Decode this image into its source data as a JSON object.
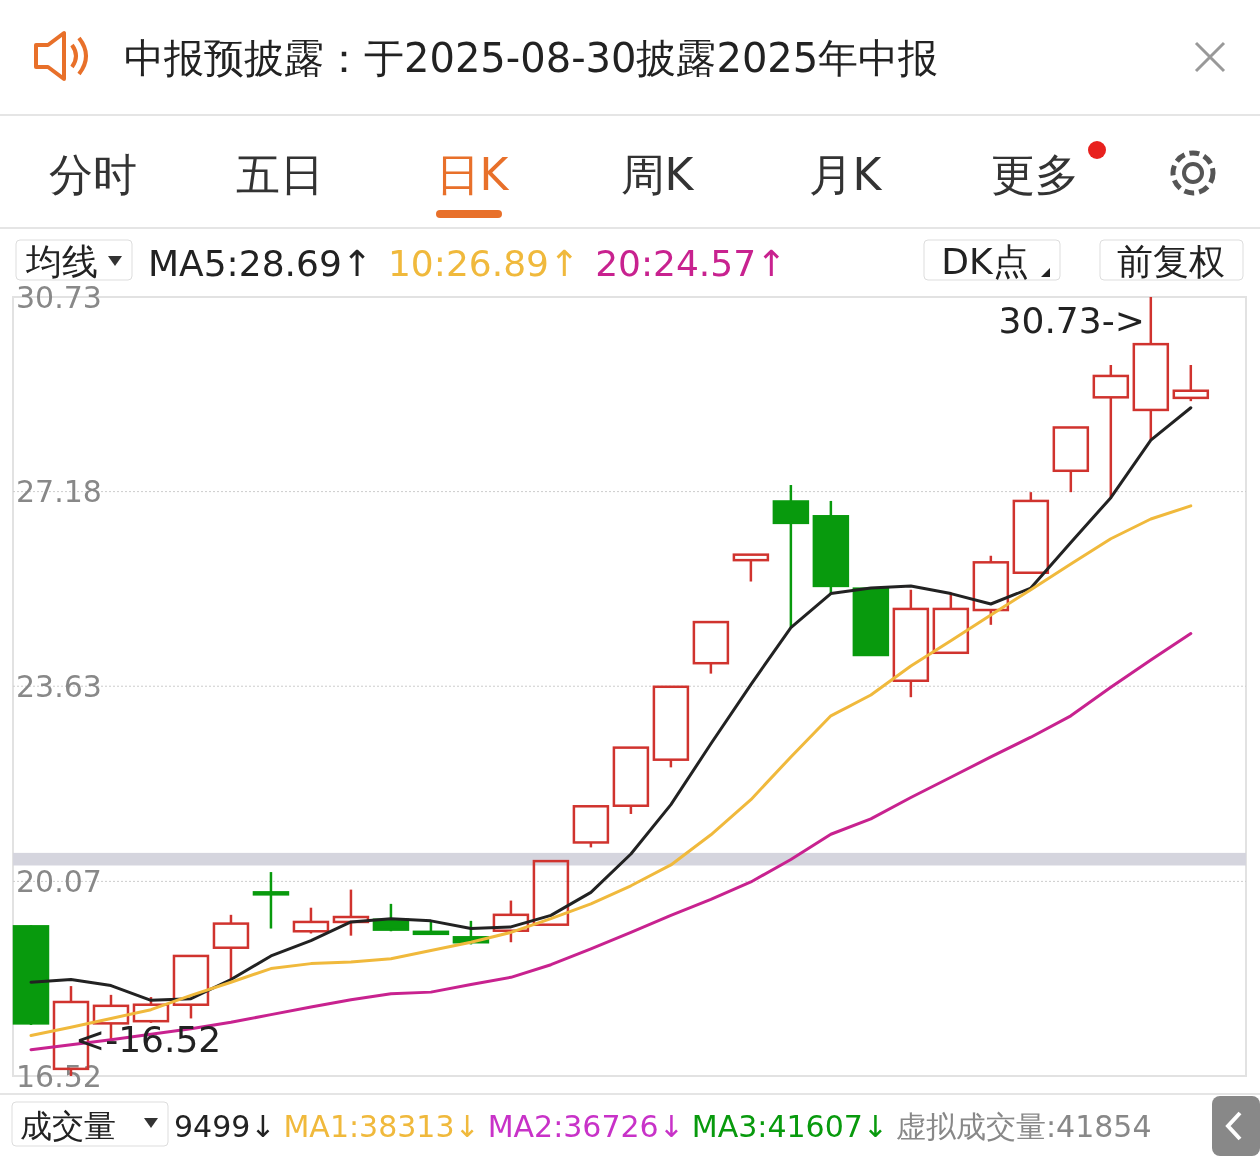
{
  "chart_data": {
    "type": "candlestick",
    "title": "中报预披露：于2025-08-30披露2025年中报",
    "categories": [
      null,
      null,
      null,
      null,
      null,
      null,
      null,
      null,
      null,
      null,
      null,
      null,
      null,
      null,
      null,
      null,
      null,
      null,
      null,
      null,
      null,
      null,
      null,
      null,
      null,
      null,
      null,
      null,
      null,
      null
    ],
    "ohlc": [
      [
        19.25,
        19.27,
        17.45,
        17.48
      ],
      [
        16.65,
        18.16,
        16.52,
        17.87
      ],
      [
        17.48,
        18.0,
        17.18,
        17.8
      ],
      [
        17.52,
        17.96,
        17.49,
        17.82
      ],
      [
        17.82,
        18.71,
        17.57,
        18.71
      ],
      [
        18.86,
        19.46,
        18.28,
        19.3
      ],
      [
        19.87,
        20.24,
        19.21,
        19.86
      ],
      [
        19.16,
        19.59,
        19.12,
        19.33
      ],
      [
        19.33,
        19.92,
        19.08,
        19.42
      ],
      [
        19.37,
        19.66,
        19.16,
        19.19
      ],
      [
        19.15,
        19.35,
        19.1,
        19.14
      ],
      [
        19.05,
        19.35,
        18.92,
        18.96
      ],
      [
        19.17,
        19.72,
        18.96,
        19.46
      ],
      [
        19.28,
        20.44,
        19.28,
        20.44
      ],
      [
        20.78,
        21.44,
        20.69,
        21.44
      ],
      [
        21.45,
        22.51,
        21.3,
        22.51
      ],
      [
        22.29,
        23.62,
        22.15,
        23.62
      ],
      [
        24.05,
        24.8,
        23.86,
        24.8
      ],
      [
        25.93,
        26.03,
        25.54,
        26.03
      ],
      [
        27.0,
        27.3,
        24.7,
        26.61
      ],
      [
        26.73,
        27.01,
        25.32,
        25.46
      ],
      [
        25.41,
        25.41,
        24.2,
        24.2
      ],
      [
        23.73,
        25.39,
        23.43,
        25.04
      ],
      [
        24.24,
        25.34,
        24.24,
        25.04
      ],
      [
        25.02,
        26.01,
        24.75,
        25.89
      ],
      [
        25.7,
        27.17,
        25.7,
        27.01
      ],
      [
        27.56,
        28.35,
        27.17,
        28.35
      ],
      [
        28.9,
        29.49,
        27.05,
        29.29
      ],
      [
        28.67,
        30.73,
        28.12,
        29.87
      ],
      [
        28.89,
        29.49,
        28.83,
        29.02
      ]
    ],
    "series": [
      {
        "name": "MA5:28.69↑",
        "type": "line",
        "color": "#222222",
        "values": [
          18.23,
          18.28,
          18.17,
          17.9,
          17.93,
          18.28,
          18.71,
          18.99,
          19.33,
          19.39,
          19.35,
          19.21,
          19.24,
          19.45,
          19.87,
          20.57,
          21.47,
          22.58,
          23.66,
          24.7,
          25.32,
          25.42,
          25.46,
          25.32,
          25.13,
          25.42,
          26.25,
          27.07,
          28.12,
          28.71
        ]
      },
      {
        "name": "10:26.89↑",
        "type": "line",
        "color": "#f0b93c",
        "values": [
          17.26,
          17.41,
          17.57,
          17.73,
          17.99,
          18.23,
          18.48,
          18.57,
          18.6,
          18.66,
          18.81,
          18.96,
          19.14,
          19.39,
          19.66,
          19.99,
          20.37,
          20.92,
          21.56,
          22.34,
          23.09,
          23.47,
          24.0,
          24.46,
          24.93,
          25.39,
          25.86,
          26.32,
          26.68,
          26.92
        ]
      },
      {
        "name": "20:24.57↑",
        "type": "line",
        "color": "#c8228f",
        "values": [
          17.0,
          17.09,
          17.18,
          17.28,
          17.38,
          17.5,
          17.64,
          17.78,
          17.91,
          18.02,
          18.05,
          18.19,
          18.32,
          18.55,
          18.84,
          19.14,
          19.45,
          19.74,
          20.06,
          20.47,
          20.93,
          21.21,
          21.6,
          21.97,
          22.34,
          22.7,
          23.09,
          23.61,
          24.11,
          24.59
        ]
      }
    ],
    "legend_title": "均线",
    "legend": "top left",
    "ylim": [
      16.52,
      30.73
    ],
    "yticks": [
      30.73,
      27.18,
      23.63,
      20.07,
      16.52
    ],
    "grid": "y",
    "tick_labels": "y",
    "bands": [
      {
        "axis": "y",
        "from": 20.36,
        "to": 20.59,
        "color": "#d5d5de"
      }
    ],
    "annotations": [
      "分时",
      "五日",
      "日K",
      "周K",
      "月K",
      "更多",
      "DK点",
      "前复权",
      "成交量",
      "9499↓",
      "MA1:38313↓",
      "MA2:36726↓",
      "MA3:41607↓",
      "虚拟成交量:41854",
      "30.73->",
      "<-16.52"
    ]
  }
}
